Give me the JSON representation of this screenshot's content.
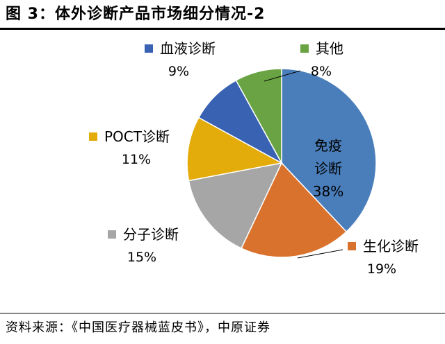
{
  "figure": {
    "title": "图 3：体外诊断产品市场细分情况-2",
    "source": "资料来源：《中国医疗器械蓝皮书》，中原证券"
  },
  "chart_data": {
    "type": "pie",
    "start_angle_deg": 0,
    "direction": "clockwise",
    "slices": [
      {
        "label": "免疫诊断",
        "value": 38,
        "display": "38%",
        "color": "#4A7EBB"
      },
      {
        "label": "生化诊断",
        "value": 19,
        "display": "19%",
        "color": "#D9722C"
      },
      {
        "label": "分子诊断",
        "value": 15,
        "display": "15%",
        "color": "#A6A6A6"
      },
      {
        "label": "POCT诊断",
        "value": 11,
        "display": "11%",
        "color": "#E3AC0A"
      },
      {
        "label": "血液诊断",
        "value": 9,
        "display": "9%",
        "color": "#3A62B3"
      },
      {
        "label": "其他",
        "value": 8,
        "display": "8%",
        "color": "#6AA343"
      }
    ]
  }
}
